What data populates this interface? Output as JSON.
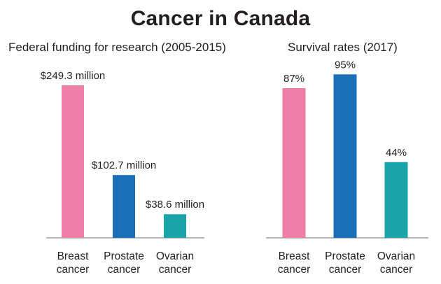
{
  "title": "Cancer in Canada",
  "colors": {
    "breast": "#f07fa8",
    "prostate": "#1a6fb8",
    "ovarian": "#1aa3a8",
    "axis": "#6b6b6b"
  },
  "chart_data": [
    {
      "type": "bar",
      "title": "Federal funding for research (2005-2015)",
      "categories": [
        [
          "Breast",
          "cancer"
        ],
        [
          "Prostate",
          "cancer"
        ],
        [
          "Ovarian",
          "cancer"
        ]
      ],
      "values": [
        249.3,
        102.7,
        38.6
      ],
      "data_labels": [
        "$249.3 million",
        "$102.7 million",
        "$38.6 million"
      ],
      "ylim": [
        0,
        249.3
      ],
      "grid": false
    },
    {
      "type": "bar",
      "title": "Survival rates (2017)",
      "categories": [
        [
          "Breast",
          "cancer"
        ],
        [
          "Prostate",
          "cancer"
        ],
        [
          "Ovarian",
          "cancer"
        ]
      ],
      "values": [
        87,
        95,
        44
      ],
      "data_labels": [
        "87%",
        "95%",
        "44%"
      ],
      "ylim": [
        0,
        100
      ],
      "grid": false
    }
  ]
}
